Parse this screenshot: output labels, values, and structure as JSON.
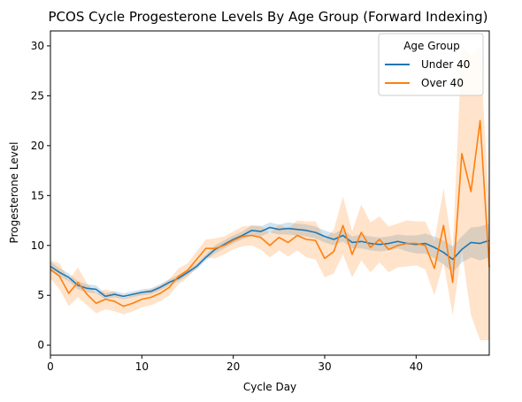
{
  "chart_data": {
    "type": "line",
    "title": "PCOS Cycle Progesterone Levels By Age Group (Forward Indexing)",
    "xlabel": "Cycle Day",
    "ylabel": "Progesterone Level",
    "xlim": [
      0,
      48
    ],
    "ylim": [
      -1,
      31.5
    ],
    "xticks": [
      0,
      10,
      20,
      30,
      40
    ],
    "yticks": [
      0,
      5,
      10,
      15,
      20,
      25,
      30
    ],
    "grid": false,
    "legend": {
      "title": "Age Group",
      "placement": "top-right"
    },
    "x": [
      0,
      1,
      2,
      3,
      4,
      5,
      6,
      7,
      8,
      9,
      10,
      11,
      12,
      13,
      14,
      15,
      16,
      17,
      18,
      19,
      20,
      21,
      22,
      23,
      24,
      25,
      26,
      27,
      28,
      29,
      30,
      31,
      32,
      33,
      34,
      35,
      36,
      37,
      38,
      39,
      40,
      41,
      42,
      43,
      44,
      45,
      46,
      47,
      48
    ],
    "series": [
      {
        "name": "Under 40",
        "color": "#1f77b4",
        "values": [
          7.9,
          7.3,
          6.8,
          6.0,
          5.7,
          5.6,
          4.9,
          5.1,
          4.9,
          5.1,
          5.3,
          5.4,
          5.8,
          6.3,
          6.7,
          7.3,
          7.9,
          8.8,
          9.6,
          10.1,
          10.6,
          11.0,
          11.5,
          11.4,
          11.8,
          11.6,
          11.7,
          11.6,
          11.5,
          11.3,
          10.9,
          10.6,
          11.0,
          10.3,
          10.4,
          10.2,
          10.1,
          10.2,
          10.4,
          10.2,
          10.1,
          10.2,
          9.8,
          9.3,
          8.6,
          9.6,
          10.3,
          10.2,
          10.5
        ],
        "lower": [
          7.4,
          6.9,
          6.4,
          5.6,
          5.3,
          5.2,
          4.6,
          4.8,
          4.6,
          4.8,
          5.0,
          5.1,
          5.5,
          6.0,
          6.4,
          7.0,
          7.6,
          8.5,
          9.2,
          9.7,
          10.2,
          10.6,
          11.0,
          10.9,
          11.3,
          11.1,
          11.1,
          11.0,
          10.9,
          10.7,
          10.3,
          10.0,
          10.4,
          9.7,
          9.7,
          9.5,
          9.4,
          9.5,
          9.7,
          9.4,
          9.2,
          9.2,
          8.7,
          8.1,
          7.3,
          8.3,
          8.8,
          8.5,
          8.8
        ],
        "upper": [
          8.4,
          7.7,
          7.2,
          6.4,
          6.1,
          6.0,
          5.2,
          5.4,
          5.2,
          5.4,
          5.6,
          5.7,
          6.1,
          6.6,
          7.0,
          7.6,
          8.2,
          9.1,
          10.0,
          10.5,
          11.0,
          11.4,
          12.0,
          11.9,
          12.3,
          12.1,
          12.3,
          12.2,
          12.1,
          11.9,
          11.5,
          11.2,
          11.6,
          10.9,
          11.1,
          10.9,
          10.8,
          10.9,
          11.1,
          11.0,
          11.0,
          11.2,
          10.9,
          10.5,
          9.9,
          10.9,
          11.8,
          11.9,
          12.2
        ]
      },
      {
        "name": "Over 40",
        "color": "#ff7f0e",
        "values": [
          7.6,
          6.9,
          5.2,
          6.3,
          5.1,
          4.2,
          4.6,
          4.4,
          3.9,
          4.2,
          4.6,
          4.8,
          5.2,
          5.8,
          6.9,
          7.5,
          8.6,
          9.7,
          9.7,
          10.0,
          10.5,
          10.9,
          11.0,
          10.8,
          10.0,
          10.8,
          10.3,
          11.0,
          10.6,
          10.5,
          8.7,
          9.4,
          12.0,
          9.1,
          11.3,
          9.8,
          10.6,
          9.6,
          10.0,
          10.2,
          10.2,
          10.0,
          7.7,
          12.0,
          6.3,
          19.2,
          15.4,
          22.5,
          7.8
        ],
        "lower": [
          6.7,
          5.6,
          3.9,
          4.8,
          4.0,
          3.2,
          3.6,
          3.4,
          3.1,
          3.4,
          3.8,
          4.0,
          4.4,
          5.0,
          6.1,
          6.8,
          7.8,
          8.8,
          8.7,
          9.1,
          9.6,
          9.9,
          10.0,
          9.6,
          8.8,
          9.5,
          8.9,
          9.5,
          8.8,
          8.6,
          6.8,
          7.2,
          9.1,
          6.8,
          8.5,
          7.3,
          8.3,
          7.3,
          7.8,
          7.9,
          8.0,
          7.6,
          5.0,
          8.3,
          3.0,
          9.5,
          3.0,
          0.5,
          0.5
        ],
        "upper": [
          8.5,
          8.2,
          6.5,
          7.8,
          6.2,
          5.2,
          5.6,
          5.4,
          4.7,
          5.0,
          5.4,
          5.6,
          6.0,
          6.6,
          7.7,
          8.2,
          9.4,
          10.6,
          10.7,
          10.9,
          11.4,
          11.9,
          12.0,
          12.0,
          11.2,
          12.1,
          11.7,
          12.5,
          12.4,
          12.4,
          10.6,
          11.6,
          14.9,
          11.4,
          14.1,
          12.3,
          12.9,
          11.9,
          12.2,
          12.5,
          12.4,
          12.4,
          10.4,
          15.7,
          9.6,
          30.0,
          29.0,
          30.0,
          13.5
        ]
      }
    ]
  }
}
